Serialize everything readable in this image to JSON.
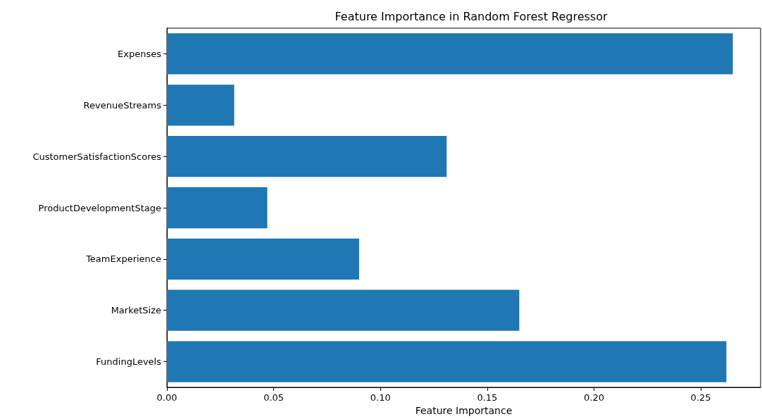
{
  "chart_data": {
    "type": "bar",
    "orientation": "horizontal",
    "title": "Feature Importance in Random Forest Regressor",
    "xlabel": "Feature Importance",
    "categories": [
      "Expenses",
      "RevenueStreams",
      "CustomerSatisfactionScores",
      "ProductDevelopmentStage",
      "TeamExperience",
      "MarketSize",
      "FundingLevels"
    ],
    "values": [
      0.265,
      0.0315,
      0.131,
      0.047,
      0.09,
      0.165,
      0.262
    ],
    "color": "#1f77b4",
    "xlim": [
      0,
      0.278
    ],
    "xticks": [
      {
        "value": 0,
        "label": "0.00"
      },
      {
        "value": 0.05,
        "label": "0.05"
      },
      {
        "value": 0.1,
        "label": "0.10"
      },
      {
        "value": 0.15,
        "label": "0.15"
      },
      {
        "value": 0.2,
        "label": "0.20"
      },
      {
        "value": 0.25,
        "label": "0.25"
      }
    ],
    "grid": false
  }
}
